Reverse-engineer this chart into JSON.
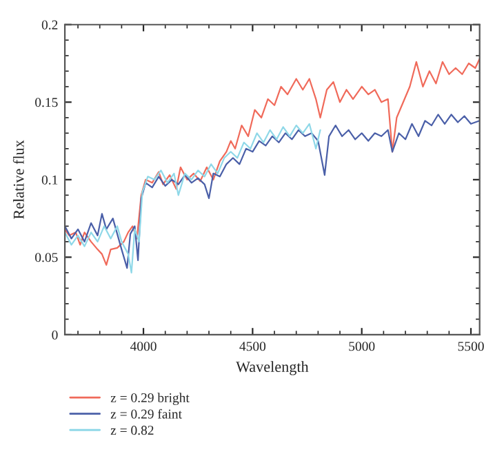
{
  "chart_data": {
    "type": "line",
    "xlabel": "Wavelength",
    "ylabel": "Relative flux",
    "xlim": [
      3640,
      5540
    ],
    "xticks": [
      4000,
      4500,
      5000,
      5500
    ],
    "ylim": [
      0,
      0.2
    ],
    "yticks": [
      0,
      0.05,
      0.1,
      0.15,
      0.2
    ],
    "grid": false,
    "legend": "bottom left",
    "marker": "none",
    "line_style": "solid",
    "series": [
      {
        "name": "z = 0.29 bright",
        "color": "#f06a5a",
        "x": [
          3640,
          3660,
          3690,
          3710,
          3730,
          3760,
          3790,
          3810,
          3830,
          3850,
          3880,
          3910,
          3930,
          3950,
          3970,
          3990,
          4010,
          4040,
          4070,
          4090,
          4120,
          4150,
          4170,
          4200,
          4230,
          4260,
          4290,
          4320,
          4350,
          4380,
          4400,
          4420,
          4450,
          4480,
          4510,
          4540,
          4570,
          4600,
          4630,
          4660,
          4700,
          4730,
          4760,
          4790,
          4810,
          4840,
          4870,
          4900,
          4930,
          4960,
          5000,
          5030,
          5060,
          5090,
          5120,
          5140,
          5160,
          5190,
          5220,
          5250,
          5280,
          5310,
          5340,
          5370,
          5400,
          5430,
          5460,
          5490,
          5520,
          5540
        ],
        "values": [
          0.068,
          0.064,
          0.066,
          0.058,
          0.066,
          0.06,
          0.055,
          0.052,
          0.045,
          0.055,
          0.056,
          0.06,
          0.066,
          0.07,
          0.062,
          0.09,
          0.1,
          0.098,
          0.105,
          0.097,
          0.103,
          0.094,
          0.108,
          0.1,
          0.104,
          0.099,
          0.108,
          0.1,
          0.112,
          0.118,
          0.125,
          0.12,
          0.135,
          0.128,
          0.145,
          0.14,
          0.152,
          0.148,
          0.16,
          0.155,
          0.165,
          0.158,
          0.165,
          0.152,
          0.14,
          0.158,
          0.163,
          0.15,
          0.158,
          0.152,
          0.16,
          0.155,
          0.158,
          0.15,
          0.152,
          0.118,
          0.14,
          0.15,
          0.16,
          0.176,
          0.16,
          0.17,
          0.162,
          0.176,
          0.168,
          0.172,
          0.168,
          0.175,
          0.172,
          0.178
        ]
      },
      {
        "name": "z = 0.29 faint",
        "color": "#4a5fa8",
        "x": [
          3640,
          3670,
          3700,
          3730,
          3760,
          3790,
          3810,
          3830,
          3860,
          3880,
          3900,
          3925,
          3940,
          3960,
          3975,
          3990,
          4010,
          4040,
          4070,
          4100,
          4130,
          4160,
          4190,
          4220,
          4250,
          4280,
          4300,
          4320,
          4350,
          4380,
          4410,
          4440,
          4470,
          4500,
          4530,
          4560,
          4590,
          4620,
          4650,
          4680,
          4710,
          4740,
          4770,
          4800,
          4830,
          4850,
          4880,
          4910,
          4940,
          4970,
          5000,
          5030,
          5060,
          5090,
          5120,
          5140,
          5170,
          5200,
          5230,
          5260,
          5290,
          5320,
          5350,
          5380,
          5410,
          5440,
          5470,
          5500,
          5540
        ],
        "values": [
          0.07,
          0.062,
          0.068,
          0.06,
          0.072,
          0.064,
          0.078,
          0.068,
          0.075,
          0.065,
          0.055,
          0.043,
          0.065,
          0.07,
          0.048,
          0.088,
          0.098,
          0.095,
          0.102,
          0.096,
          0.1,
          0.097,
          0.103,
          0.098,
          0.101,
          0.097,
          0.088,
          0.104,
          0.102,
          0.11,
          0.114,
          0.11,
          0.12,
          0.118,
          0.125,
          0.122,
          0.128,
          0.124,
          0.13,
          0.126,
          0.132,
          0.128,
          0.13,
          0.125,
          0.103,
          0.128,
          0.135,
          0.128,
          0.132,
          0.126,
          0.13,
          0.125,
          0.13,
          0.128,
          0.132,
          0.118,
          0.13,
          0.126,
          0.136,
          0.128,
          0.138,
          0.135,
          0.142,
          0.136,
          0.142,
          0.137,
          0.141,
          0.136,
          0.138
        ]
      },
      {
        "name": "z = 0.82",
        "color": "#8fd8e8",
        "x": [
          3640,
          3670,
          3700,
          3730,
          3760,
          3790,
          3820,
          3850,
          3880,
          3900,
          3930,
          3945,
          3960,
          3980,
          3995,
          4020,
          4050,
          4080,
          4110,
          4140,
          4160,
          4190,
          4220,
          4250,
          4280,
          4310,
          4340,
          4370,
          4400,
          4430,
          4460,
          4490,
          4520,
          4550,
          4580,
          4610,
          4640,
          4670,
          4700,
          4730,
          4760,
          4790,
          4810
        ],
        "values": [
          0.066,
          0.058,
          0.064,
          0.057,
          0.066,
          0.06,
          0.07,
          0.062,
          0.07,
          0.06,
          0.052,
          0.04,
          0.068,
          0.06,
          0.092,
          0.102,
          0.1,
          0.106,
          0.098,
          0.104,
          0.09,
          0.104,
          0.1,
          0.106,
          0.102,
          0.11,
          0.104,
          0.114,
          0.118,
          0.114,
          0.124,
          0.12,
          0.13,
          0.124,
          0.132,
          0.126,
          0.134,
          0.128,
          0.135,
          0.13,
          0.136,
          0.12,
          0.132
        ]
      }
    ]
  }
}
